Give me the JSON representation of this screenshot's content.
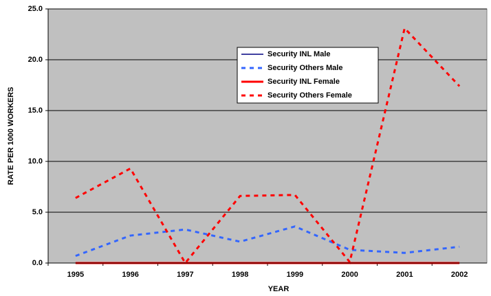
{
  "chart_data": {
    "type": "line",
    "x_label": "YEAR",
    "y_label": "RATE PER 1000 WORKERS",
    "categories": [
      "1995",
      "1996",
      "1997",
      "1998",
      "1999",
      "2000",
      "2001",
      "2002"
    ],
    "series": [
      {
        "name": "Security INL Male",
        "color": "#000080",
        "dash": "solid",
        "width": 1.5,
        "values": [
          0,
          0,
          0,
          0,
          0,
          0,
          0,
          0
        ]
      },
      {
        "name": "Security Others Male",
        "color": "#3366ff",
        "dash": "dashed",
        "width": 3,
        "values": [
          0.7,
          2.7,
          3.3,
          2.1,
          3.6,
          1.3,
          1.0,
          1.6
        ]
      },
      {
        "name": "Security INL Female",
        "color": "#ff0000",
        "dash": "solid",
        "width": 3,
        "values": [
          0,
          0,
          0,
          0,
          0,
          0,
          0,
          0
        ]
      },
      {
        "name": "Security Others Female",
        "color": "#ff0000",
        "dash": "dashed",
        "width": 3,
        "values": [
          6.4,
          9.3,
          0.0,
          6.6,
          6.7,
          0.1,
          23.1,
          17.4
        ]
      }
    ],
    "ylim": [
      0,
      25
    ],
    "yticks": [
      {
        "value": 0,
        "label": "0.0"
      },
      {
        "value": 5,
        "label": "5.0"
      },
      {
        "value": 10,
        "label": "10.0"
      },
      {
        "value": 15,
        "label": "15.0"
      },
      {
        "value": 20,
        "label": "20.0"
      },
      {
        "value": 25,
        "label": "25.0"
      }
    ],
    "grid": true,
    "background": "#c0c0c0"
  }
}
